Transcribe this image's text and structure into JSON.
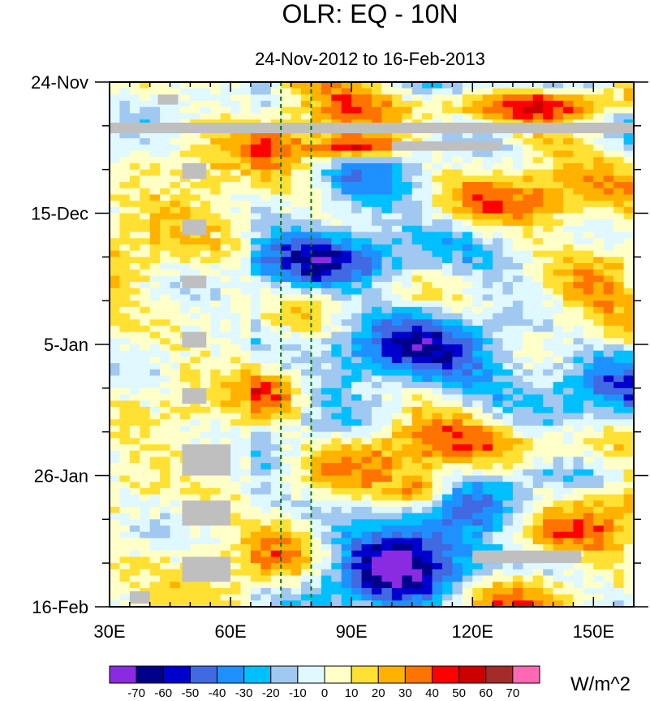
{
  "chart_data": {
    "type": "heatmap",
    "title": "OLR: EQ - 10N",
    "subtitle": "24-Nov-2012 to 16-Feb-2013",
    "units": "W/m^2",
    "x_axis": {
      "range": [
        30,
        160
      ],
      "ticks": [
        {
          "value": 30,
          "label": "30E"
        },
        {
          "value": 60,
          "label": "60E"
        },
        {
          "value": 90,
          "label": "90E"
        },
        {
          "value": 120,
          "label": "120E"
        },
        {
          "value": 150,
          "label": "150E"
        }
      ]
    },
    "y_axis": {
      "range_days": [
        0,
        84
      ],
      "ticks": [
        {
          "day": 0,
          "label": "24-Nov"
        },
        {
          "day": 21,
          "label": "15-Dec"
        },
        {
          "day": 42,
          "label": "5-Jan"
        },
        {
          "day": 63,
          "label": "26-Jan"
        },
        {
          "day": 84,
          "label": "16-Feb"
        }
      ]
    },
    "reference_lines_lon": [
      72.5,
      80
    ],
    "colorbar": {
      "levels": [
        -70,
        -60,
        -50,
        -40,
        -30,
        -20,
        -10,
        0,
        10,
        20,
        30,
        40,
        50,
        60,
        70
      ],
      "colors": [
        "#8a2be2",
        "#00008b",
        "#0000cd",
        "#4169e1",
        "#1e90ff",
        "#00bfff",
        "#a0c8f0",
        "#e0f8ff",
        "#ffffc8",
        "#ffe033",
        "#ffb300",
        "#ff7300",
        "#ff0000",
        "#cd0000",
        "#a52a2a",
        "#ff69b4"
      ]
    },
    "anomaly_features": [
      {
        "lon_min": 80,
        "lon_max": 100,
        "day_min": 9,
        "day_max": 12,
        "value": 55
      },
      {
        "lon_min": 100,
        "lon_max": 160,
        "day_min": 1,
        "day_max": 6,
        "value": 40
      },
      {
        "lon_min": 120,
        "lon_max": 160,
        "day_min": 15,
        "day_max": 26,
        "value": 40
      },
      {
        "lon_min": 70,
        "lon_max": 110,
        "day_min": 24,
        "day_max": 34,
        "value": -50
      },
      {
        "lon_min": 90,
        "lon_max": 150,
        "day_min": 38,
        "day_max": 50,
        "value": -50
      },
      {
        "lon_min": 60,
        "lon_max": 80,
        "day_min": 45,
        "day_max": 55,
        "value": 30
      },
      {
        "lon_min": 125,
        "lon_max": 160,
        "day_min": 55,
        "day_max": 62,
        "value": 35
      },
      {
        "lon_min": 100,
        "lon_max": 115,
        "day_min": 63,
        "day_max": 68,
        "value": 45
      },
      {
        "lon_min": 80,
        "lon_max": 120,
        "day_min": 68,
        "day_max": 84,
        "value": -45
      },
      {
        "lon_min": 120,
        "lon_max": 150,
        "day_min": 70,
        "day_max": 76,
        "value": 35
      }
    ],
    "missing_data": [
      {
        "lon_min": 30,
        "lon_max": 160,
        "day_min": 6.5,
        "day_max": 8.2
      },
      {
        "lon_min": 100,
        "lon_max": 127,
        "day_min": 9.5,
        "day_max": 11
      },
      {
        "lon_min": 120,
        "lon_max": 147,
        "day_min": 75,
        "day_max": 77
      },
      {
        "lon_min": 42,
        "lon_max": 47,
        "day_min": 2,
        "day_max": 3.6
      },
      {
        "lon_min": 48,
        "lon_max": 54,
        "day_min": 13,
        "day_max": 15.5
      },
      {
        "lon_min": 48,
        "lon_max": 54,
        "day_min": 22,
        "day_max": 24.5
      },
      {
        "lon_min": 48,
        "lon_max": 54,
        "day_min": 31,
        "day_max": 33
      },
      {
        "lon_min": 48,
        "lon_max": 54,
        "day_min": 40,
        "day_max": 42.5
      },
      {
        "lon_min": 48,
        "lon_max": 54,
        "day_min": 49,
        "day_max": 51.5
      },
      {
        "lon_min": 48,
        "lon_max": 60,
        "day_min": 58,
        "day_max": 63
      },
      {
        "lon_min": 48,
        "lon_max": 60,
        "day_min": 67,
        "day_max": 71
      },
      {
        "lon_min": 48,
        "lon_max": 60,
        "day_min": 76,
        "day_max": 80
      },
      {
        "lon_min": 35,
        "lon_max": 40,
        "day_min": 81.5,
        "day_max": 83.5
      }
    ]
  }
}
